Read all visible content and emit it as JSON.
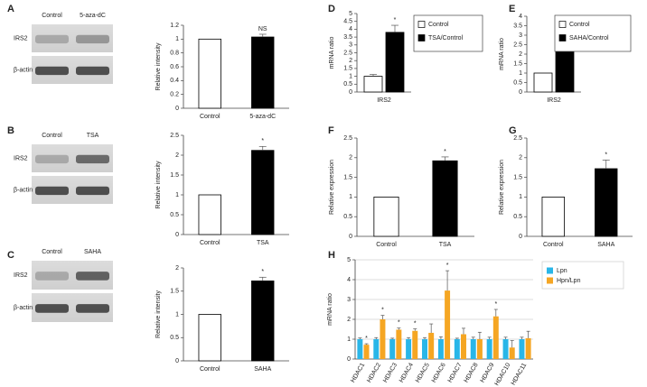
{
  "chart_data": [
    {
      "panel": "A",
      "type": "bar",
      "ylabel": "Relative intensity",
      "categories": [
        "Control",
        "5-aza-dC"
      ],
      "values": [
        1,
        1.03
      ],
      "errors": [
        null,
        0.04
      ],
      "annotations": [
        null,
        "NS"
      ],
      "colors": [
        "#ffffff",
        "#000000"
      ],
      "ylim": [
        0,
        1.2
      ],
      "yticks": [
        0,
        0.2,
        0.4,
        0.6,
        0.8,
        1,
        1.2
      ],
      "blot": {
        "lanes": [
          "Control",
          "5-aza-dC"
        ],
        "rows": [
          "IRS2",
          "β-actin"
        ]
      }
    },
    {
      "panel": "B",
      "type": "bar",
      "ylabel": "Relative intensity",
      "categories": [
        "Control",
        "TSA"
      ],
      "values": [
        1,
        2.12
      ],
      "errors": [
        null,
        0.1
      ],
      "annotations": [
        null,
        "*"
      ],
      "colors": [
        "#ffffff",
        "#000000"
      ],
      "ylim": [
        0,
        2.5
      ],
      "yticks": [
        0,
        0.5,
        1,
        1.5,
        2,
        2.5
      ],
      "blot": {
        "lanes": [
          "Control",
          "TSA"
        ],
        "rows": [
          "IRS2",
          "β-actin"
        ]
      }
    },
    {
      "panel": "C",
      "type": "bar",
      "ylabel": "Relative intensity",
      "categories": [
        "Control",
        "SAHA"
      ],
      "values": [
        1,
        1.72
      ],
      "errors": [
        null,
        0.08
      ],
      "annotations": [
        null,
        "*"
      ],
      "colors": [
        "#ffffff",
        "#000000"
      ],
      "ylim": [
        0,
        2
      ],
      "yticks": [
        0,
        0.5,
        1,
        1.5,
        2
      ],
      "blot": {
        "lanes": [
          "Control",
          "SAHA"
        ],
        "rows": [
          "IRS2",
          "β-actin"
        ]
      }
    },
    {
      "panel": "D",
      "type": "bar",
      "ylabel": "mRNA ratio",
      "categories": [
        "IRS2"
      ],
      "series": [
        {
          "name": "Control",
          "color": "#ffffff",
          "values": [
            1
          ],
          "errors": [
            0.12
          ],
          "annotations": [
            null
          ]
        },
        {
          "name": "TSA/Control",
          "color": "#000000",
          "values": [
            3.8
          ],
          "errors": [
            0.45
          ],
          "annotations": [
            "*"
          ]
        }
      ],
      "ylim": [
        0,
        5
      ],
      "yticks": [
        0,
        0.5,
        1,
        1.5,
        2,
        2.5,
        3,
        3.5,
        4,
        4.5,
        5
      ],
      "legend": "right"
    },
    {
      "panel": "E",
      "type": "bar",
      "ylabel": "mRNA ratio",
      "categories": [
        "IRS2"
      ],
      "series": [
        {
          "name": "Control",
          "color": "#ffffff",
          "values": [
            1
          ],
          "errors": [
            null
          ],
          "annotations": [
            null
          ]
        },
        {
          "name": "SAHA/Control",
          "color": "#000000",
          "values": [
            3.05
          ],
          "errors": [
            0.3
          ],
          "annotations": [
            "*"
          ]
        }
      ],
      "ylim": [
        0,
        4
      ],
      "yticks": [
        0,
        0.5,
        1,
        1.5,
        2,
        2.5,
        3,
        3.5,
        4
      ],
      "legend": "right"
    },
    {
      "panel": "F",
      "type": "bar",
      "ylabel": "Relative expression",
      "categories": [
        "Control",
        "TSA"
      ],
      "values": [
        1,
        1.92
      ],
      "errors": [
        null,
        0.1
      ],
      "annotations": [
        null,
        "*"
      ],
      "colors": [
        "#ffffff",
        "#000000"
      ],
      "ylim": [
        0,
        2.5
      ],
      "yticks": [
        0,
        0.5,
        1,
        1.5,
        2,
        2.5
      ]
    },
    {
      "panel": "G",
      "type": "bar",
      "ylabel": "Relative expression",
      "categories": [
        "Control",
        "SAHA"
      ],
      "values": [
        1,
        1.72
      ],
      "errors": [
        null,
        0.22
      ],
      "annotations": [
        null,
        "*"
      ],
      "colors": [
        "#ffffff",
        "#000000"
      ],
      "ylim": [
        0,
        2.5
      ],
      "yticks": [
        0,
        0.5,
        1,
        1.5,
        2,
        2.5
      ]
    },
    {
      "panel": "H",
      "type": "bar",
      "ylabel": "mRNA ratio",
      "categories": [
        "HDAC1",
        "HDAC2",
        "HDAC3",
        "HDAC4",
        "HDAC5",
        "HDAC6",
        "HDAC7",
        "HDAC8",
        "HDAC9",
        "HDAC10",
        "HDAC11"
      ],
      "series": [
        {
          "name": "Lpn",
          "color": "#29b6e8",
          "values": [
            1,
            1,
            1,
            1,
            1,
            1,
            1,
            1,
            1,
            1,
            1
          ],
          "errors": [
            0.06,
            0.08,
            0.05,
            0.08,
            0.08,
            0.12,
            0.05,
            0.1,
            0.1,
            0.1,
            0.1
          ],
          "annotations": [
            null,
            null,
            null,
            null,
            null,
            null,
            null,
            null,
            null,
            null,
            null
          ]
        },
        {
          "name": "Hpn/Lpn",
          "color": "#f5a623",
          "values": [
            0.72,
            2.0,
            1.48,
            1.42,
            1.32,
            3.45,
            1.25,
            1.0,
            2.15,
            0.58,
            1.05
          ],
          "errors": [
            0.05,
            0.2,
            0.08,
            0.1,
            0.45,
            1.0,
            0.3,
            0.35,
            0.35,
            0.35,
            0.35
          ],
          "annotations": [
            "*",
            "*",
            "*",
            "*",
            null,
            "*",
            null,
            null,
            "*",
            null,
            null
          ]
        }
      ],
      "ylim": [
        0,
        5
      ],
      "yticks": [
        0,
        1,
        2,
        3,
        4,
        5
      ],
      "grid": true,
      "legend": "right"
    }
  ]
}
